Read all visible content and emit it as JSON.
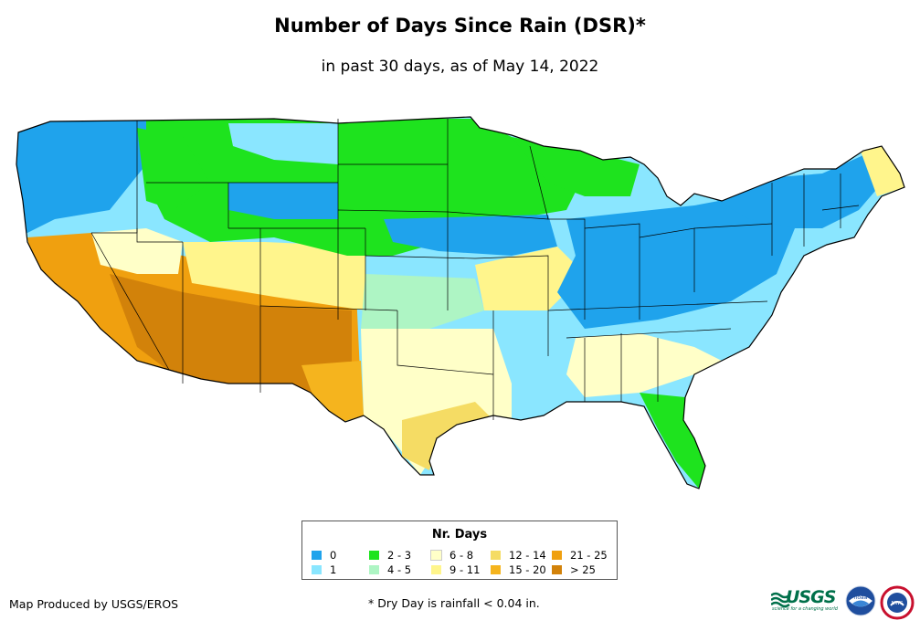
{
  "title": "Number of Days Since Rain (DSR)*",
  "subtitle": "in past 30 days, as of May 14, 2022",
  "legend": {
    "title": "Nr. Days",
    "items": [
      {
        "label": "0",
        "color": "#1fa3ec"
      },
      {
        "label": "1",
        "color": "#8ae6ff"
      },
      {
        "label": "2 - 3",
        "color": "#1ee31e"
      },
      {
        "label": "4 - 5",
        "color": "#aef5c4"
      },
      {
        "label": "6 - 8",
        "color": "#ffffc8"
      },
      {
        "label": "9 - 11",
        "color": "#fff58c"
      },
      {
        "label": "12 - 14",
        "color": "#f5dc64"
      },
      {
        "label": "15 - 20",
        "color": "#f5b41e"
      },
      {
        "label": "21 - 25",
        "color": "#f0a00f"
      },
      {
        "label": "> 25",
        "color": "#d2820a"
      }
    ]
  },
  "footer": {
    "credit": "Map Produced by USGS/EROS",
    "note": "* Dry Day is rainfall < 0.04 in."
  },
  "logos": {
    "usgs": "USGS",
    "usgs_tagline": "science for a changing world",
    "noaa": "noaa",
    "nws": "NWS"
  }
}
